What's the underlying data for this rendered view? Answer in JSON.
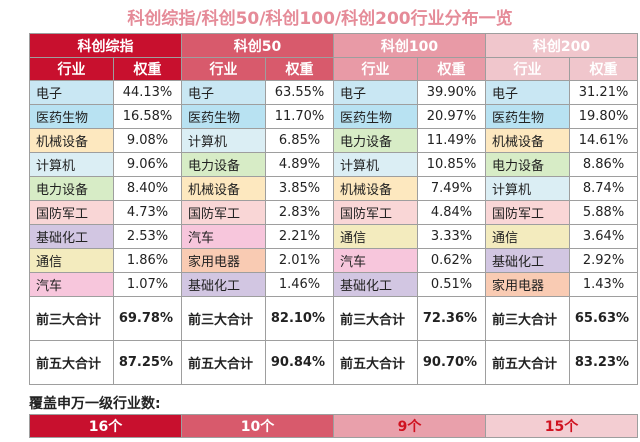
{
  "title": "科创综指/科创50/科创100/科创200行业分布一览",
  "column_headers": {
    "industry": "行业",
    "weight": "权重"
  },
  "indices": [
    {
      "name": "科创综指",
      "header_color": "#c8102e",
      "subheader_color": "#c8102e",
      "rows": [
        {
          "industry": "电子",
          "weight": "44.13%",
          "color": "#c9e7f3"
        },
        {
          "industry": "医药生物",
          "weight": "16.58%",
          "color": "#b8e2f2"
        },
        {
          "industry": "机械设备",
          "weight": "9.08%",
          "color": "#fde8bf"
        },
        {
          "industry": "计算机",
          "weight": "9.06%",
          "color": "#dbeef4"
        },
        {
          "industry": "电力设备",
          "weight": "8.40%",
          "color": "#d7ecc6"
        },
        {
          "industry": "国防军工",
          "weight": "4.73%",
          "color": "#f9d6d6"
        },
        {
          "industry": "基础化工",
          "weight": "2.53%",
          "color": "#d2c6e2"
        },
        {
          "industry": "通信",
          "weight": "1.86%",
          "color": "#f3ebbe"
        },
        {
          "industry": "汽车",
          "weight": "1.07%",
          "color": "#f7c6dc"
        }
      ],
      "top3_label": "前三大合计",
      "top3": "69.78%",
      "top5_label": "前五大合计",
      "top5": "87.25%",
      "coverage": "16个",
      "coverage_bg": "#c8102e",
      "coverage_fg": "#ffffff"
    },
    {
      "name": "科创50",
      "header_color": "#d85a6c",
      "subheader_color": "#d85a6c",
      "rows": [
        {
          "industry": "电子",
          "weight": "63.55%",
          "color": "#c9e7f3"
        },
        {
          "industry": "医药生物",
          "weight": "11.70%",
          "color": "#b8e2f2"
        },
        {
          "industry": "计算机",
          "weight": "6.85%",
          "color": "#dbeef4"
        },
        {
          "industry": "电力设备",
          "weight": "4.89%",
          "color": "#d7ecc6"
        },
        {
          "industry": "机械设备",
          "weight": "3.85%",
          "color": "#fde8bf"
        },
        {
          "industry": "国防军工",
          "weight": "2.83%",
          "color": "#f9d6d6"
        },
        {
          "industry": "汽车",
          "weight": "2.21%",
          "color": "#f7c6dc"
        },
        {
          "industry": "家用电器",
          "weight": "2.01%",
          "color": "#f9cbb3"
        },
        {
          "industry": "基础化工",
          "weight": "1.46%",
          "color": "#d2c6e2"
        }
      ],
      "top3_label": "前三大合计",
      "top3": "82.10%",
      "top5_label": "前五大合计",
      "top5": "90.84%",
      "coverage": "10个",
      "coverage_bg": "#d85a6c",
      "coverage_fg": "#ffffff"
    },
    {
      "name": "科创100",
      "header_color": "#e89aa6",
      "subheader_color": "#e89aa6",
      "rows": [
        {
          "industry": "电子",
          "weight": "39.90%",
          "color": "#c9e7f3"
        },
        {
          "industry": "医药生物",
          "weight": "20.97%",
          "color": "#b8e2f2"
        },
        {
          "industry": "电力设备",
          "weight": "11.49%",
          "color": "#d7ecc6"
        },
        {
          "industry": "计算机",
          "weight": "10.85%",
          "color": "#dbeef4"
        },
        {
          "industry": "机械设备",
          "weight": "7.49%",
          "color": "#fde8bf"
        },
        {
          "industry": "国防军工",
          "weight": "4.84%",
          "color": "#f9d6d6"
        },
        {
          "industry": "通信",
          "weight": "3.33%",
          "color": "#f3ebbe"
        },
        {
          "industry": "汽车",
          "weight": "0.62%",
          "color": "#f7c6dc"
        },
        {
          "industry": "基础化工",
          "weight": "0.51%",
          "color": "#d2c6e2"
        }
      ],
      "top3_label": "前三大合计",
      "top3": "72.36%",
      "top5_label": "前五大合计",
      "top5": "90.70%",
      "coverage": "9个",
      "coverage_bg": "#e9a0ab",
      "coverage_fg": "#d01220"
    },
    {
      "name": "科创200",
      "header_color": "#f0c6cc",
      "subheader_color": "#f0c6cc",
      "rows": [
        {
          "industry": "电子",
          "weight": "31.21%",
          "color": "#c9e7f3"
        },
        {
          "industry": "医药生物",
          "weight": "19.80%",
          "color": "#b8e2f2"
        },
        {
          "industry": "机械设备",
          "weight": "14.61%",
          "color": "#fde8bf"
        },
        {
          "industry": "电力设备",
          "weight": "8.86%",
          "color": "#d7ecc6"
        },
        {
          "industry": "计算机",
          "weight": "8.74%",
          "color": "#dbeef4"
        },
        {
          "industry": "国防军工",
          "weight": "5.88%",
          "color": "#f9d6d6"
        },
        {
          "industry": "通信",
          "weight": "3.64%",
          "color": "#f3ebbe"
        },
        {
          "industry": "基础化工",
          "weight": "2.92%",
          "color": "#d2c6e2"
        },
        {
          "industry": "家用电器",
          "weight": "1.43%",
          "color": "#f9cbb3"
        }
      ],
      "top3_label": "前三大合计",
      "top3": "65.63%",
      "top5_label": "前五大合计",
      "top5": "83.23%",
      "coverage": "15个",
      "coverage_bg": "#f3cdd2",
      "coverage_fg": "#d01220"
    }
  ],
  "coverage_label": "覆盖申万一级行业数:"
}
